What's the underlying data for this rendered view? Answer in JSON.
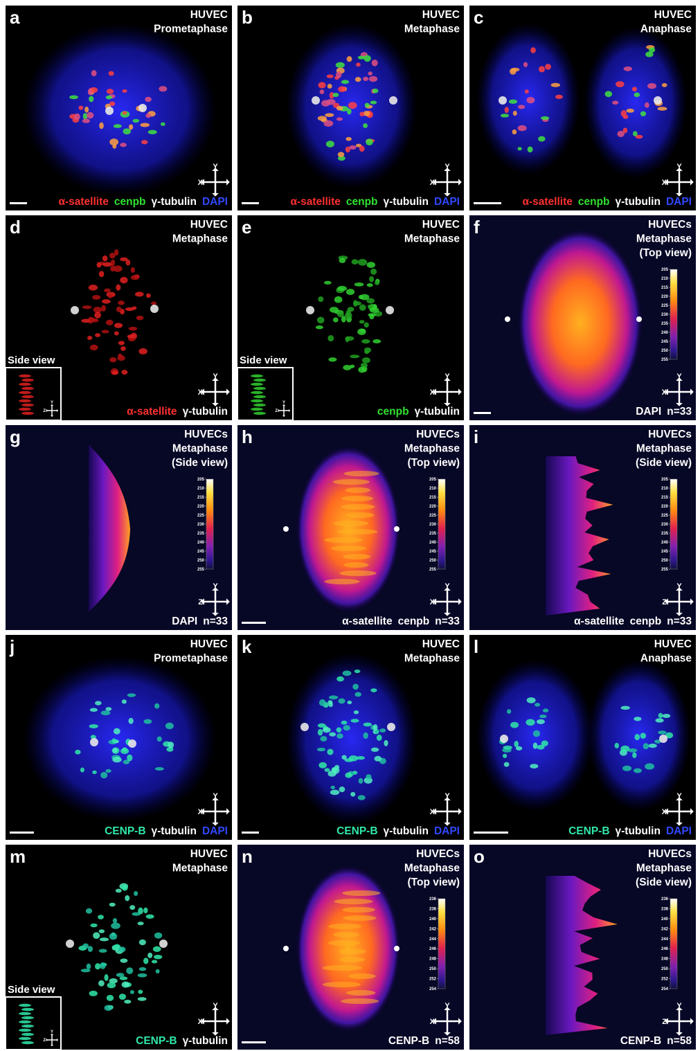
{
  "panels": [
    {
      "letter": "a",
      "title": [
        "HUVEC",
        "Prometaphase"
      ],
      "labels": [
        {
          "text": "α-satellite",
          "color": "#ff3030"
        },
        {
          "text": "cenpb",
          "color": "#30e030"
        },
        {
          "text": "γ-tubulin",
          "color": "#ffffff"
        },
        {
          "text": "DAPI",
          "color": "#3048ff"
        }
      ],
      "axes": [
        "Y",
        "X"
      ]
    },
    {
      "letter": "b",
      "title": [
        "HUVEC",
        "Metaphase"
      ],
      "labels": [
        {
          "text": "α-satellite",
          "color": "#ff3030"
        },
        {
          "text": "cenpb",
          "color": "#30e030"
        },
        {
          "text": "γ-tubulin",
          "color": "#ffffff"
        },
        {
          "text": "DAPI",
          "color": "#3048ff"
        }
      ],
      "axes": [
        "Y",
        "X"
      ]
    },
    {
      "letter": "c",
      "title": [
        "HUVEC",
        "Anaphase"
      ],
      "labels": [
        {
          "text": "α-satellite",
          "color": "#ff3030"
        },
        {
          "text": "cenpb",
          "color": "#30e030"
        },
        {
          "text": "γ-tubulin",
          "color": "#ffffff"
        },
        {
          "text": "DAPI",
          "color": "#3048ff"
        }
      ],
      "axes": [
        "Y",
        "X"
      ]
    },
    {
      "letter": "d",
      "title": [
        "HUVEC",
        "Metaphase"
      ],
      "labels": [
        {
          "text": "α-satellite",
          "color": "#ff3030"
        },
        {
          "text": "γ-tubulin",
          "color": "#ffffff"
        }
      ],
      "axes": [
        "Y",
        "X"
      ],
      "inset": {
        "label": "Side view",
        "axes": [
          "Y",
          "Z"
        ]
      }
    },
    {
      "letter": "e",
      "title": [
        "HUVEC",
        "Metaphase"
      ],
      "labels": [
        {
          "text": "cenpb",
          "color": "#30e030"
        },
        {
          "text": "γ-tubulin",
          "color": "#ffffff"
        }
      ],
      "axes": [
        "Y",
        "X"
      ],
      "inset": {
        "label": "Side view",
        "axes": [
          "Y",
          "Z"
        ]
      }
    },
    {
      "letter": "f",
      "title": [
        "HUVECs",
        "Metaphase",
        "(Top view)"
      ],
      "labels": [
        {
          "text": "DAPI",
          "color": "#ffffff"
        },
        {
          "text": "n=33",
          "color": "#ffffff"
        }
      ],
      "axes": [
        "Y",
        "X"
      ],
      "colorbar": [
        205,
        210,
        215,
        220,
        225,
        230,
        235,
        240,
        245,
        250,
        255
      ]
    },
    {
      "letter": "g",
      "title": [
        "HUVECs",
        "Metaphase",
        "(Side view)"
      ],
      "labels": [
        {
          "text": "DAPI",
          "color": "#ffffff"
        },
        {
          "text": "n=33",
          "color": "#ffffff"
        }
      ],
      "axes": [
        "Y",
        "Z"
      ],
      "colorbar": [
        205,
        210,
        215,
        220,
        225,
        230,
        235,
        240,
        245,
        250,
        255
      ]
    },
    {
      "letter": "h",
      "title": [
        "HUVECs",
        "Metaphase",
        "(Top view)"
      ],
      "labels": [
        {
          "text": "α-satellite",
          "color": "#ffffff"
        },
        {
          "text": "cenpb",
          "color": "#ffffff"
        },
        {
          "text": "n=33",
          "color": "#ffffff"
        }
      ],
      "axes": [
        "Y",
        "X"
      ],
      "colorbar": [
        205,
        210,
        215,
        220,
        225,
        230,
        235,
        240,
        245,
        250,
        255
      ]
    },
    {
      "letter": "i",
      "title": [
        "HUVECs",
        "Metaphase",
        "(Side view)"
      ],
      "labels": [
        {
          "text": "α-satellite",
          "color": "#ffffff"
        },
        {
          "text": "cenpb",
          "color": "#ffffff"
        },
        {
          "text": "n=33",
          "color": "#ffffff"
        }
      ],
      "axes": [
        "Y",
        "Z"
      ],
      "colorbar": [
        205,
        210,
        215,
        220,
        225,
        230,
        235,
        240,
        245,
        250,
        255
      ]
    },
    {
      "letter": "j",
      "title": [
        "HUVEC",
        "Prometaphase"
      ],
      "labels": [
        {
          "text": "CENP-B",
          "color": "#30e8a8"
        },
        {
          "text": "γ-tubulin",
          "color": "#ffffff"
        },
        {
          "text": "DAPI",
          "color": "#3048ff"
        }
      ],
      "axes": [
        "Y",
        "X"
      ]
    },
    {
      "letter": "k",
      "title": [
        "HUVEC",
        "Metaphase"
      ],
      "labels": [
        {
          "text": "CENP-B",
          "color": "#30e8a8"
        },
        {
          "text": "γ-tubulin",
          "color": "#ffffff"
        },
        {
          "text": "DAPI",
          "color": "#3048ff"
        }
      ],
      "axes": [
        "Y",
        "X"
      ]
    },
    {
      "letter": "l",
      "title": [
        "HUVEC",
        "Anaphase"
      ],
      "labels": [
        {
          "text": "CENP-B",
          "color": "#30e8a8"
        },
        {
          "text": "γ-tubulin",
          "color": "#ffffff"
        },
        {
          "text": "DAPI",
          "color": "#3048ff"
        }
      ],
      "axes": [
        "Y",
        "X"
      ]
    },
    {
      "letter": "m",
      "title": [
        "HUVEC",
        "Metaphase"
      ],
      "labels": [
        {
          "text": "CENP-B",
          "color": "#30e8a8"
        },
        {
          "text": "γ-tubulin",
          "color": "#ffffff"
        }
      ],
      "axes": [
        "Y",
        "X"
      ],
      "inset": {
        "label": "Side view",
        "axes": [
          "Y",
          "Z"
        ]
      }
    },
    {
      "letter": "n",
      "title": [
        "HUVECs",
        "Metaphase",
        "(Top view)"
      ],
      "labels": [
        {
          "text": "CENP-B",
          "color": "#ffffff"
        },
        {
          "text": "n=58",
          "color": "#ffffff"
        }
      ],
      "axes": [
        "Y",
        "X"
      ],
      "colorbar": [
        236,
        238,
        240,
        242,
        244,
        246,
        248,
        250,
        252,
        254
      ]
    },
    {
      "letter": "o",
      "title": [
        "HUVECs",
        "Metaphase",
        "(Side view)"
      ],
      "labels": [
        {
          "text": "CENP-B",
          "color": "#ffffff"
        },
        {
          "text": "n=58",
          "color": "#ffffff"
        }
      ],
      "axes": [
        "Y",
        "Z"
      ],
      "colorbar": [
        236,
        238,
        240,
        242,
        244,
        246,
        248,
        250,
        252,
        254
      ]
    }
  ]
}
